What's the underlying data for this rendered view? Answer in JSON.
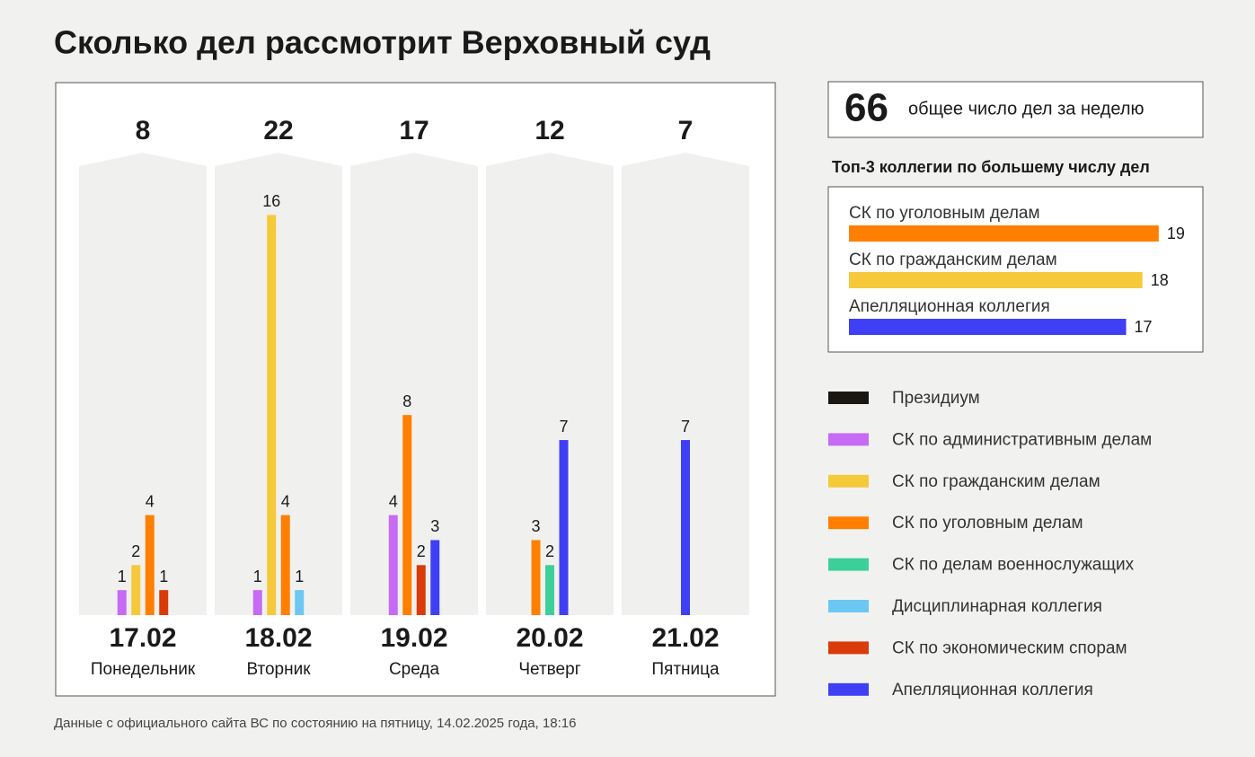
{
  "chart_data": {
    "type": "bar",
    "title": "Сколько дел рассмотрит Верховный суд",
    "categories": [
      "17.02",
      "18.02",
      "19.02",
      "20.02",
      "21.02"
    ],
    "weekdays": [
      "Понедельник",
      "Вторник",
      "Среда",
      "Четверг",
      "Пятница"
    ],
    "totals": [
      8,
      22,
      17,
      12,
      7
    ],
    "series": [
      {
        "name": "Президиум",
        "color": "#1a1612",
        "values": [
          null,
          null,
          null,
          null,
          null
        ]
      },
      {
        "name": "СК по административным делам",
        "color": "#c76af5",
        "values": [
          1,
          1,
          4,
          null,
          null
        ]
      },
      {
        "name": "СК по гражданским делам",
        "color": "#f5c93a",
        "values": [
          2,
          16,
          null,
          null,
          null
        ]
      },
      {
        "name": "СК по уголовным делам",
        "color": "#ff7f00",
        "values": [
          4,
          4,
          8,
          3,
          null
        ]
      },
      {
        "name": "СК по делам военнослужащих",
        "color": "#3dcf9a",
        "values": [
          null,
          null,
          null,
          2,
          null
        ]
      },
      {
        "name": "Дисциплинарная коллегия",
        "color": "#6cc7f2",
        "values": [
          null,
          1,
          null,
          null,
          null
        ]
      },
      {
        "name": "СК по экономическим спорам",
        "color": "#d93b0a",
        "values": [
          1,
          null,
          2,
          null,
          null
        ]
      },
      {
        "name": "Апелляционная коллегия",
        "color": "#3f3ff5",
        "values": [
          null,
          null,
          3,
          7,
          7
        ]
      }
    ]
  },
  "summary": {
    "total": 66,
    "label": "общее число дел за неделю"
  },
  "top3": {
    "title": "Топ-3 коллегии по большему числу дел",
    "items": [
      {
        "name": "СК по уголовным делам",
        "value": 19,
        "color": "#ff7f00"
      },
      {
        "name": "СК по гражданским делам",
        "value": 18,
        "color": "#f5c93a"
      },
      {
        "name": "Апелляционная коллегия",
        "value": 17,
        "color": "#3f3ff5"
      }
    ]
  },
  "source": "Данные с официального сайта ВС по состоянию на пятницу, 14.02.2025 года, 18:16"
}
